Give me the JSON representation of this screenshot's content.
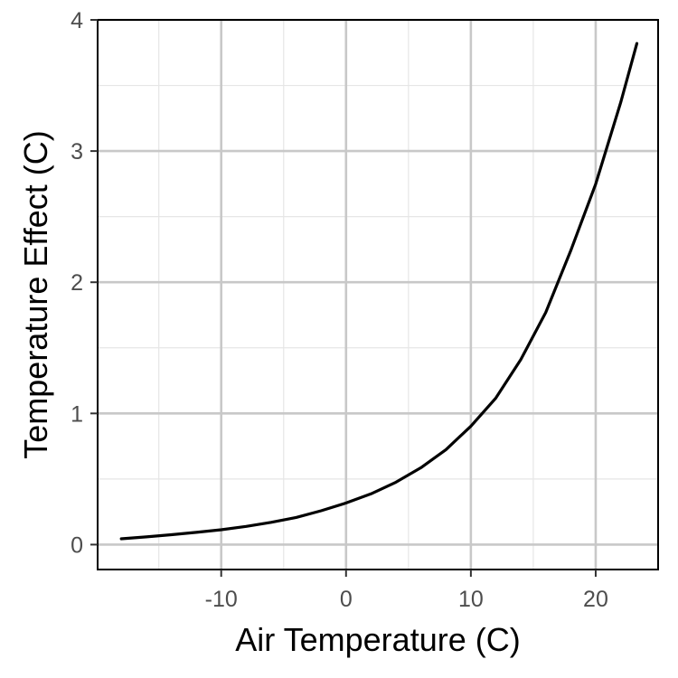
{
  "chart_data": {
    "type": "line",
    "title": "",
    "xlabel": "Air Temperature (C)",
    "ylabel": "Temperature Effect (C)",
    "xlim": [
      -19.9,
      25.0
    ],
    "ylim": [
      -0.19,
      4.0
    ],
    "x_ticks": [
      -10,
      0,
      10,
      20
    ],
    "x_tick_labels": [
      "-10",
      "0",
      "10",
      "20"
    ],
    "y_ticks": [
      0,
      1,
      2,
      3,
      4
    ],
    "y_tick_labels": [
      "0",
      "1",
      "2",
      "3",
      "4"
    ],
    "x_minor": [
      -15,
      -5,
      5,
      15
    ],
    "y_minor": [
      0.5,
      1.5,
      2.5,
      3.5
    ],
    "grid": true,
    "colors": {
      "line": "#000000",
      "grid_major": "#c8c8c8",
      "grid_minor": "#e6e6e6",
      "panel_border": "#000000",
      "background": "#ffffff"
    },
    "series": [
      {
        "x": [
          -18,
          -16,
          -14,
          -12,
          -10,
          -8,
          -6,
          -4,
          -2,
          0,
          2,
          4,
          6,
          8,
          10,
          12,
          14,
          16,
          18,
          20,
          22,
          23.3
        ],
        "y": [
          0.044,
          0.059,
          0.075,
          0.093,
          0.113,
          0.139,
          0.17,
          0.207,
          0.258,
          0.317,
          0.387,
          0.476,
          0.586,
          0.724,
          0.903,
          1.117,
          1.41,
          1.77,
          2.24,
          2.75,
          3.37,
          3.82
        ]
      }
    ]
  }
}
